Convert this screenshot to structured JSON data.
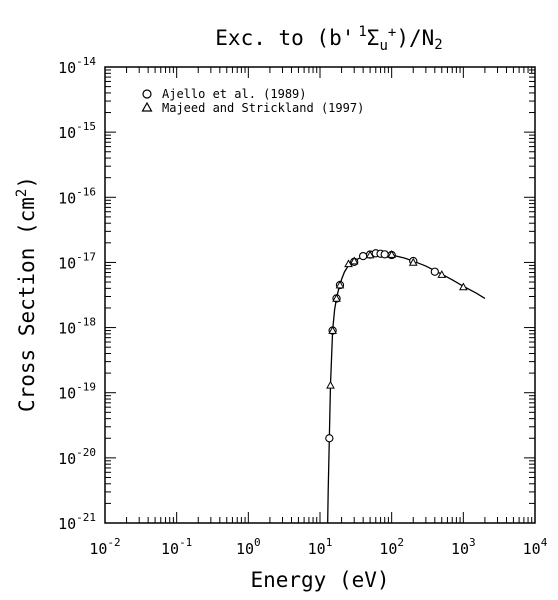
{
  "chart_data": {
    "type": "scatter",
    "title": "Exc. to (b' ¹Σu⁺)/N₂",
    "title_parts": {
      "prefix": "Exc. to (b'",
      "sup": "1",
      "sigma": "Σ",
      "sub": "u",
      "plus": "+",
      "suffix": ")/N",
      "n_sub": "2"
    },
    "xlabel": "Energy (eV)",
    "ylabel": "Cross Section (cm²)",
    "ylabel_parts": {
      "text": "Cross Section (cm",
      "sup": "2",
      "close": ")"
    },
    "x_scale": "log",
    "y_scale": "log",
    "xlim": [
      0.01,
      10000
    ],
    "ylim": [
      1e-21,
      1e-14
    ],
    "x_ticks": [
      {
        "value": 0.01,
        "base": "10",
        "exp": "-2"
      },
      {
        "value": 0.1,
        "base": "10",
        "exp": "-1"
      },
      {
        "value": 1,
        "base": "10",
        "exp": "0"
      },
      {
        "value": 10,
        "base": "10",
        "exp": "1"
      },
      {
        "value": 100,
        "base": "10",
        "exp": "2"
      },
      {
        "value": 1000,
        "base": "10",
        "exp": "3"
      },
      {
        "value": 10000,
        "base": "10",
        "exp": "4"
      }
    ],
    "y_ticks": [
      {
        "value": 1e-21,
        "base": "10",
        "exp": "-21"
      },
      {
        "value": 1e-20,
        "base": "10",
        "exp": "-20"
      },
      {
        "value": 1e-19,
        "base": "10",
        "exp": "-19"
      },
      {
        "value": 1e-18,
        "base": "10",
        "exp": "-18"
      },
      {
        "value": 1e-17,
        "base": "10",
        "exp": "-17"
      },
      {
        "value": 1e-16,
        "base": "10",
        "exp": "-16"
      },
      {
        "value": 1e-15,
        "base": "10",
        "exp": "-15"
      },
      {
        "value": 1e-14,
        "base": "10",
        "exp": "-14"
      }
    ],
    "grid": false,
    "legend_position": "top-left",
    "series": [
      {
        "name": "Ajello et al. (1989)",
        "marker": "circle",
        "x": [
          13.5,
          15,
          17,
          19,
          30,
          40,
          50,
          60,
          70,
          80,
          100,
          200,
          400
        ],
        "y": [
          2e-20,
          9e-19,
          2.8e-18,
          4.5e-18,
          1.02e-17,
          1.25e-17,
          1.32e-17,
          1.38e-17,
          1.36e-17,
          1.33e-17,
          1.3e-17,
          1.05e-17,
          7.2e-18
        ]
      },
      {
        "name": "Majeed and Strickland (1997)",
        "marker": "triangle",
        "x": [
          14,
          15,
          17,
          19,
          25,
          30,
          50,
          100,
          200,
          500,
          1000
        ],
        "y": [
          1.3e-19,
          9e-19,
          2.8e-18,
          4.5e-18,
          9.5e-18,
          1.05e-17,
          1.3e-17,
          1.32e-17,
          1e-17,
          6.5e-18,
          4.2e-18
        ]
      }
    ],
    "curve": {
      "x": [
        12.8,
        13,
        13.5,
        14,
        15,
        16,
        17,
        18,
        19,
        20,
        22,
        25,
        30,
        40,
        50,
        60,
        70,
        80,
        100,
        150,
        200,
        300,
        500,
        700,
        1000,
        1500,
        2000
      ],
      "y": [
        1e-21,
        3e-21,
        2e-20,
        1.3e-19,
        9e-19,
        1.9e-18,
        2.8e-18,
        3.7e-18,
        4.5e-18,
        5.5e-18,
        7.2e-18,
        9e-18,
        1.06e-17,
        1.24e-17,
        1.32e-17,
        1.35e-17,
        1.35e-17,
        1.34e-17,
        1.3e-17,
        1.17e-17,
        1.05e-17,
        8.8e-18,
        6.6e-18,
        5.4e-18,
        4.3e-18,
        3.4e-18,
        2.8e-18
      ]
    }
  }
}
